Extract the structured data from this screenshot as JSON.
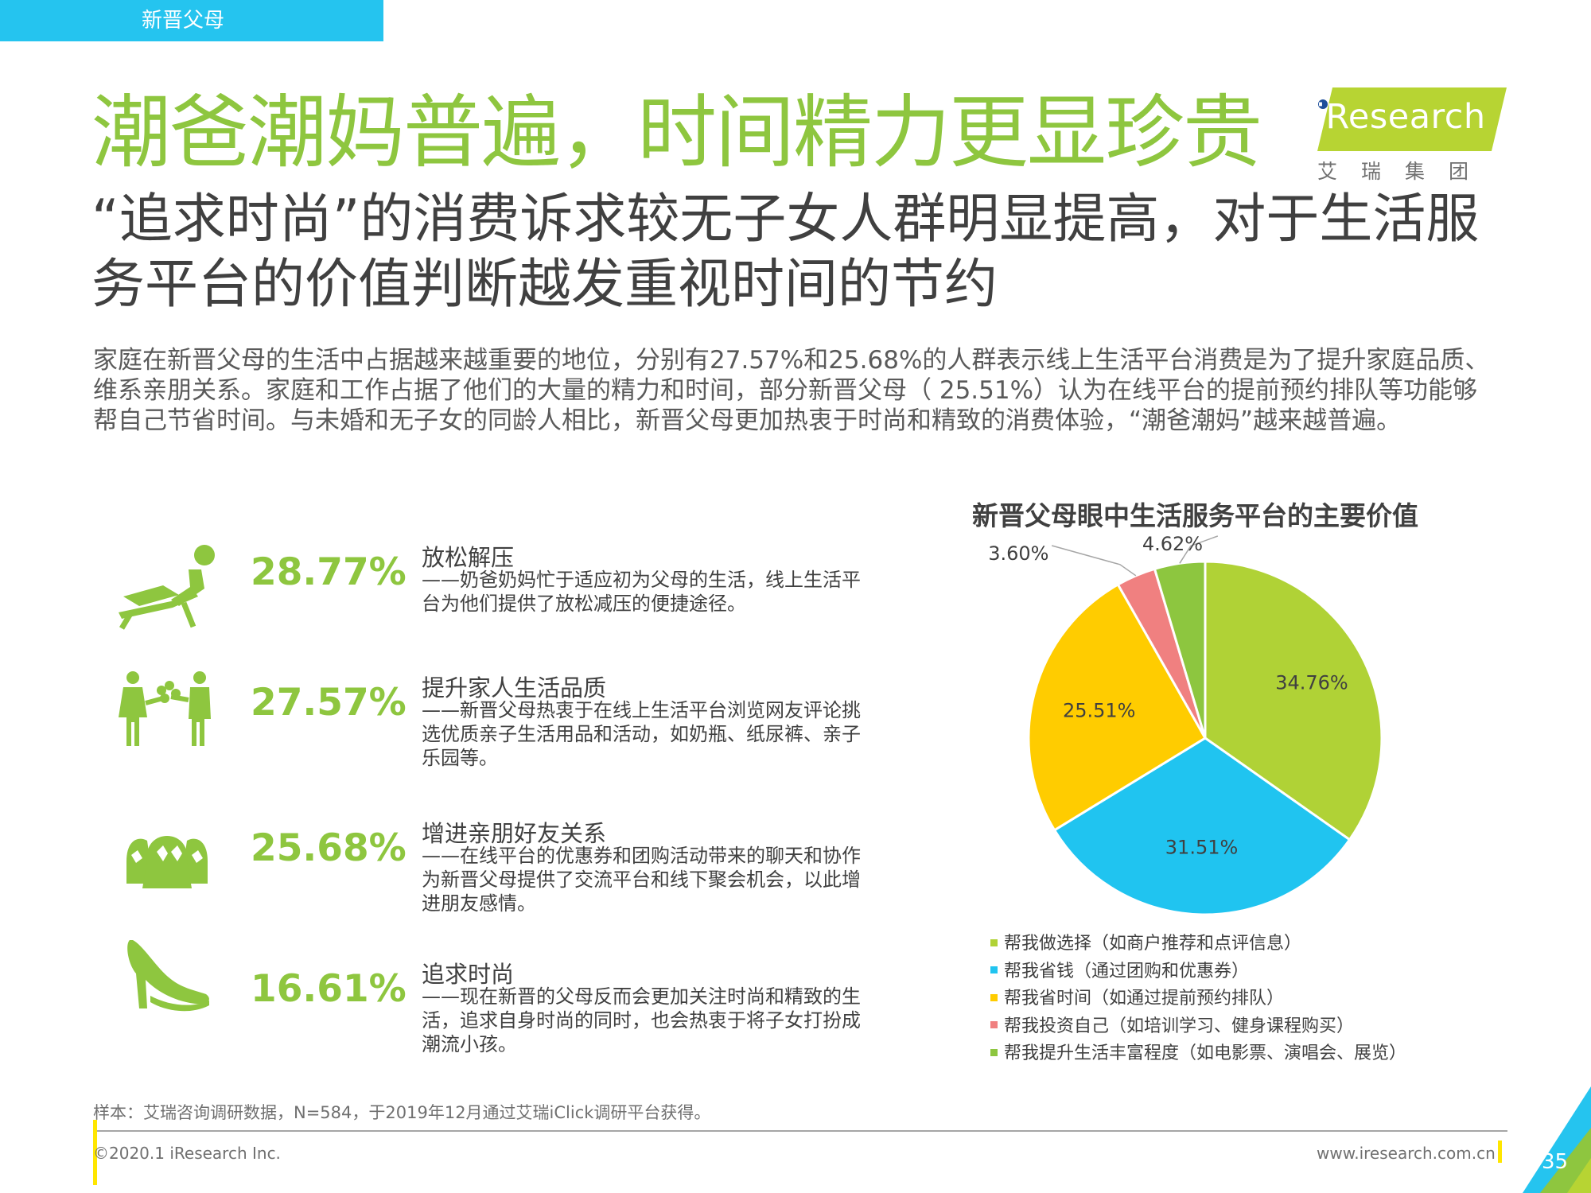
{
  "header": {
    "section_tab": "新晋父母",
    "title": "潮爸潮妈普遍，时间精力更显珍贵",
    "subtitle": "“追求时尚”的消费诉求较无子女人群明显提高，对于生活服务平台的价值判断越发重视时间的节约"
  },
  "logo": {
    "text": "iResearch",
    "sub": "艾瑞集团",
    "color": "#b7d433"
  },
  "intro": "家庭在新晋父母的生活中占据越来越重要的地位，分别有27.57%和25.68%的人群表示线上生活平台消费是为了提升家庭品质、维系亲朋关系。家庭和工作占据了他们的大量的精力和时间，部分新晋父母（ 25.51%）认为在线平台的提前预约排队等功能够帮自己节省时间。与未婚和无子女的同龄人相比，新晋父母更加热衷于时尚和精致的消费体验，“潮爸潮妈”越来越普遍。",
  "items": [
    {
      "icon": "lounge-chair-person-icon",
      "pct": "28.77%",
      "title": "放松解压",
      "desc": "——奶爸奶妈忙于适应初为父母的生活，线上生活平台为他们提供了放松减压的便捷途径。"
    },
    {
      "icon": "family-flowers-icon",
      "pct": "27.57%",
      "title": "提升家人生活品质",
      "desc": "——新晋父母热衷于在线上生活平台浏览网友评论挑选优质亲子生活用品和活动，如奶瓶、纸尿裤、亲子乐园等。"
    },
    {
      "icon": "friends-group-icon",
      "pct": "25.68%",
      "title": "增进亲朋好友关系",
      "desc": "——在线平台的优惠券和团购活动带来的聊天和协作为新晋父母提供了交流平台和线下聚会机会，以此增进朋友感情。"
    },
    {
      "icon": "high-heel-shoe-icon",
      "pct": "16.61%",
      "title": "追求时尚",
      "desc": "——现在新晋的父母反而会更加关注时尚和精致的生活，追求自身时尚的同时，也会热衷于将子女打扮成潮流小孩。"
    }
  ],
  "chart_data": {
    "type": "pie",
    "title": "新晋父母眼中生活服务平台的主要价值",
    "series": [
      {
        "name": "帮我做选择（如商户推荐和点评信息）",
        "value": 34.76,
        "label": "34.76%",
        "color": "#b0d236"
      },
      {
        "name": "帮我省钱（通过团购和优惠券）",
        "value": 31.51,
        "label": "31.51%",
        "color": "#20c4f0"
      },
      {
        "name": "帮我省时间（如通过提前预约排队）",
        "value": 25.51,
        "label": "25.51%",
        "color": "#ffcc00"
      },
      {
        "name": "帮我投资自己（如培训学习、健身课程购买）",
        "value": 3.6,
        "label": "3.60%",
        "color": "#f08080"
      },
      {
        "name": "帮我提升生活丰富程度（如电影票、演唱会、展览）",
        "value": 4.62,
        "label": "4.62%",
        "color": "#8dc63f"
      }
    ],
    "legend_position": "bottom"
  },
  "footer": {
    "sample": "样本：艾瑞咨询调研数据，N=584，于2019年12月通过艾瑞iClick调研平台获得。",
    "copyright": "©2020.1 iResearch Inc.",
    "website": "www.iresearch.com.cn",
    "page_number": "35"
  }
}
